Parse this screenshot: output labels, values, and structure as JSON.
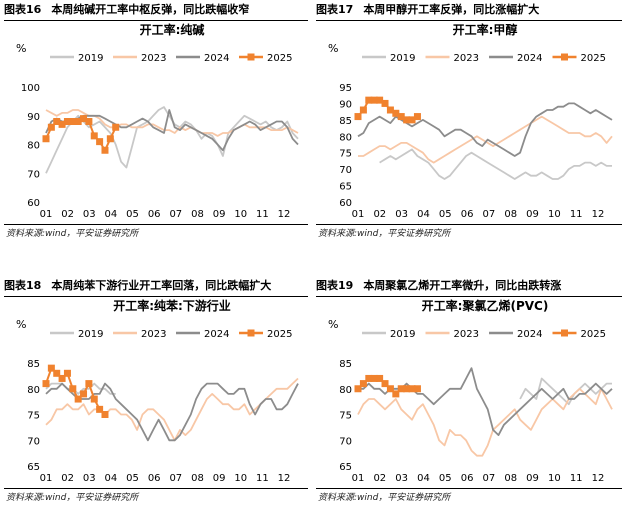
{
  "source_text": "资料来源:wind，平安证券研究所",
  "legend_labels": [
    "2019",
    "2023",
    "2024",
    "2025"
  ],
  "series_colors": {
    "2019": "#c8c8c8",
    "2023": "#f8c7a6",
    "2024": "#8c8c8c",
    "2025": "#f0822e"
  },
  "panels": [
    {
      "fig": "图表16",
      "caption": "本周纯碱开工率中枢反弹，同比跌幅收窄",
      "chart_data": {
        "type": "line",
        "title": "开工率:纯碱",
        "ylabel": "%",
        "ylim": [
          60,
          100
        ],
        "yticks": [
          60,
          70,
          80,
          90,
          100
        ],
        "xticks": [
          "01",
          "02",
          "03",
          "04",
          "05",
          "06",
          "07",
          "08",
          "09",
          "10",
          "11",
          "12"
        ],
        "series": [
          {
            "name": "2019",
            "values": [
              70,
              74,
              78,
              82,
              86,
              88,
              90,
              88,
              86,
              87,
              88,
              86,
              84,
              80,
              74,
              72,
              79,
              86,
              87,
              88,
              90,
              92,
              93,
              90,
              87,
              86,
              88,
              87,
              85,
              82,
              84,
              83,
              80,
              76,
              84,
              86,
              88,
              90,
              89,
              88,
              87,
              88,
              86,
              85,
              86,
              88,
              84,
              82
            ]
          },
          {
            "name": "2023",
            "values": [
              92,
              91,
              90,
              91,
              91,
              92,
              92,
              91,
              90,
              90,
              89,
              87,
              86,
              86,
              87,
              87,
              86,
              86,
              86,
              87,
              87,
              86,
              85,
              85,
              84,
              86,
              85,
              86,
              85,
              84,
              84,
              84,
              83,
              84,
              84,
              85,
              86,
              87,
              86,
              86,
              86,
              86,
              85,
              85,
              85,
              86,
              85,
              84
            ]
          },
          {
            "name": "2024",
            "values": [
              84,
              88,
              89,
              88,
              88,
              88,
              89,
              90,
              90,
              90,
              90,
              89,
              88,
              87,
              86,
              86,
              87,
              88,
              89,
              88,
              86,
              85,
              84,
              92,
              86,
              85,
              87,
              86,
              85,
              84,
              83,
              82,
              80,
              78,
              82,
              85,
              86,
              87,
              88,
              87,
              85,
              86,
              87,
              88,
              88,
              86,
              82,
              80
            ]
          },
          {
            "name": "2025",
            "values": [
              82,
              86,
              88,
              87,
              88,
              88,
              88,
              89,
              88,
              83,
              81,
              78,
              82,
              86
            ]
          }
        ]
      }
    },
    {
      "fig": "图表17",
      "caption": "本周甲醇开工率反弹，同比涨幅扩大",
      "chart_data": {
        "type": "line",
        "title": "开工率:甲醇",
        "ylabel": "%",
        "ylim": [
          60,
          95
        ],
        "yticks": [
          60,
          65,
          70,
          75,
          80,
          85,
          90,
          95
        ],
        "xticks": [
          "01",
          "02",
          "03",
          "04",
          "05",
          "06",
          "07",
          "08",
          "09",
          "10",
          "11",
          "12"
        ],
        "series": [
          {
            "name": "2019",
            "values": [
              null,
              null,
              null,
              null,
              72,
              73,
              74,
              73,
              74,
              75,
              76,
              74,
              73,
              72,
              70,
              68,
              67,
              68,
              70,
              72,
              74,
              75,
              74,
              73,
              72,
              71,
              70,
              69,
              68,
              67,
              68,
              69,
              68,
              68,
              69,
              68,
              67,
              67,
              68,
              70,
              71,
              71,
              72,
              72,
              71,
              72,
              71,
              71
            ]
          },
          {
            "name": "2023",
            "values": [
              74,
              74,
              75,
              76,
              77,
              77,
              76,
              77,
              78,
              78,
              77,
              76,
              75,
              73,
              72,
              73,
              74,
              75,
              76,
              77,
              78,
              79,
              80,
              79,
              78,
              77,
              78,
              79,
              80,
              81,
              82,
              83,
              84,
              85,
              86,
              85,
              84,
              83,
              82,
              81,
              81,
              81,
              80,
              80,
              81,
              80,
              78,
              80
            ]
          },
          {
            "name": "2024",
            "values": [
              80,
              81,
              84,
              85,
              86,
              85,
              84,
              86,
              85,
              84,
              83,
              84,
              85,
              84,
              83,
              82,
              80,
              81,
              82,
              82,
              81,
              80,
              78,
              77,
              79,
              78,
              77,
              76,
              75,
              74,
              75,
              80,
              84,
              86,
              87,
              88,
              88,
              89,
              89,
              90,
              90,
              89,
              88,
              87,
              88,
              87,
              86,
              85
            ]
          },
          {
            "name": "2025",
            "values": [
              86,
              88,
              91,
              91,
              91,
              90,
              88,
              87,
              86,
              85,
              85,
              86
            ]
          }
        ]
      }
    },
    {
      "fig": "图表18",
      "caption": "本周纯苯下游行业开工率回落，同比跌幅扩大",
      "chart_data": {
        "type": "line",
        "title": "开工率:纯苯:下游行业",
        "ylabel": "%",
        "ylim": [
          65,
          85
        ],
        "yticks": [
          65,
          70,
          75,
          80,
          85
        ],
        "xticks": [
          "01",
          "02",
          "03",
          "04",
          "05",
          "06",
          "07",
          "08",
          "09",
          "10",
          "11",
          "12"
        ],
        "series": [
          {
            "name": "2019",
            "values": [
              80,
              81,
              81,
              81,
              80,
              80,
              79,
              80,
              80,
              81,
              80,
              80,
              79,
              79,
              null,
              null,
              null,
              null,
              null,
              null,
              null,
              null,
              null,
              null,
              null,
              null,
              null,
              null,
              null,
              null,
              null,
              null,
              null,
              null,
              null,
              null,
              null,
              null,
              null,
              null,
              null,
              null,
              null,
              null,
              null,
              null,
              null,
              null
            ]
          },
          {
            "name": "2023",
            "values": [
              73,
              74,
              76,
              76,
              77,
              76,
              76,
              77,
              75,
              76,
              76,
              75,
              76,
              76,
              75,
              75,
              74,
              72,
              75,
              76,
              76,
              75,
              74,
              72,
              70,
              72,
              71,
              72,
              74,
              76,
              78,
              79,
              78,
              77,
              77,
              76,
              76,
              77,
              75,
              76,
              77,
              78,
              79,
              80,
              80,
              80,
              81,
              82
            ]
          },
          {
            "name": "2024",
            "values": [
              79,
              80,
              80,
              81,
              80,
              79,
              78,
              78,
              78,
              79,
              79,
              81,
              80,
              78,
              77,
              76,
              75,
              74,
              72,
              70,
              72,
              74,
              72,
              70,
              70,
              71,
              73,
              75,
              78,
              80,
              81,
              81,
              81,
              80,
              79,
              79,
              80,
              80,
              77,
              75,
              77,
              78,
              78,
              76,
              76,
              77,
              79,
              81
            ]
          },
          {
            "name": "2025",
            "values": [
              81,
              84,
              83,
              82,
              83,
              80,
              78,
              79,
              81,
              78,
              76,
              75
            ]
          }
        ]
      }
    },
    {
      "fig": "图表19",
      "caption": "本周聚氯乙烯开工率微升，同比由跌转涨",
      "chart_data": {
        "type": "line",
        "title": "开工率:聚氯乙烯(PVC)",
        "ylabel": "%",
        "ylim": [
          65,
          85
        ],
        "yticks": [
          65,
          70,
          75,
          80,
          85
        ],
        "xticks": [
          "01",
          "02",
          "03",
          "04",
          "05",
          "06",
          "07",
          "08",
          "09",
          "10",
          "11",
          "12"
        ],
        "series": [
          {
            "name": "2019",
            "values": [
              null,
              null,
              null,
              null,
              null,
              null,
              null,
              null,
              null,
              null,
              null,
              null,
              null,
              null,
              null,
              null,
              null,
              null,
              null,
              null,
              null,
              null,
              null,
              null,
              null,
              null,
              null,
              null,
              null,
              null,
              78,
              80,
              79,
              78,
              82,
              81,
              80,
              79,
              78,
              77,
              79,
              80,
              81,
              80,
              79,
              80,
              81,
              81
            ]
          },
          {
            "name": "2023",
            "values": [
              75,
              77,
              78,
              78,
              77,
              76,
              77,
              78,
              76,
              75,
              74,
              76,
              77,
              75,
              73,
              70,
              69,
              72,
              71,
              71,
              70,
              68,
              67,
              67,
              69,
              72,
              73,
              74,
              75,
              76,
              74,
              73,
              72,
              74,
              76,
              77,
              78,
              77,
              76,
              78,
              79,
              80,
              79,
              78,
              77,
              80,
              78,
              76
            ]
          },
          {
            "name": "2024",
            "values": [
              80,
              80,
              81,
              80,
              80,
              79,
              80,
              80,
              80,
              81,
              80,
              79,
              79,
              78,
              77,
              78,
              79,
              80,
              80,
              80,
              82,
              84,
              80,
              78,
              76,
              72,
              71,
              73,
              74,
              75,
              76,
              77,
              78,
              79,
              80,
              79,
              78,
              79,
              80,
              78,
              78,
              79,
              79,
              80,
              81,
              80,
              79,
              80
            ]
          },
          {
            "name": "2025",
            "values": [
              80,
              81,
              82,
              82,
              82,
              81,
              80,
              79,
              80,
              80,
              80,
              80
            ]
          }
        ]
      }
    }
  ]
}
